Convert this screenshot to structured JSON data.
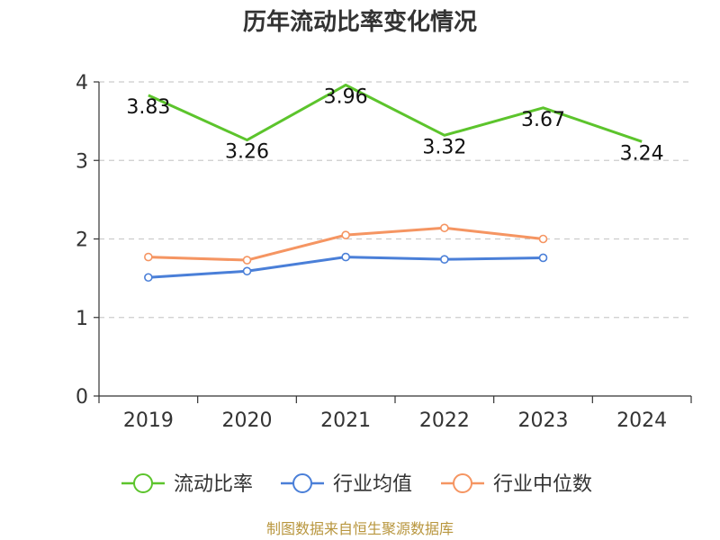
{
  "source": "制图数据来自恒生聚源数据库",
  "chart_data": {
    "type": "line",
    "title": "历年流动比率变化情况",
    "xlabel": "",
    "ylabel": "",
    "categories": [
      "2019",
      "2020",
      "2021",
      "2022",
      "2023",
      "2024"
    ],
    "ylim": [
      0,
      4
    ],
    "yticks": [
      0,
      1,
      2,
      3,
      4
    ],
    "grid": true,
    "legend_position": "bottom",
    "series": [
      {
        "name": "流动比率",
        "color": "#5cc42c",
        "values": [
          3.83,
          3.26,
          3.96,
          3.32,
          3.67,
          3.24
        ],
        "labels": [
          "3.83",
          "3.26",
          "3.96",
          "3.32",
          "3.67",
          "3.24"
        ],
        "markers": false
      },
      {
        "name": "行业均值",
        "color": "#4a7fd8",
        "values": [
          1.51,
          1.59,
          1.77,
          1.74,
          1.76,
          null
        ],
        "markers": true
      },
      {
        "name": "行业中位数",
        "color": "#f59562",
        "values": [
          1.77,
          1.73,
          2.05,
          2.14,
          2.0,
          null
        ],
        "markers": true
      }
    ]
  }
}
